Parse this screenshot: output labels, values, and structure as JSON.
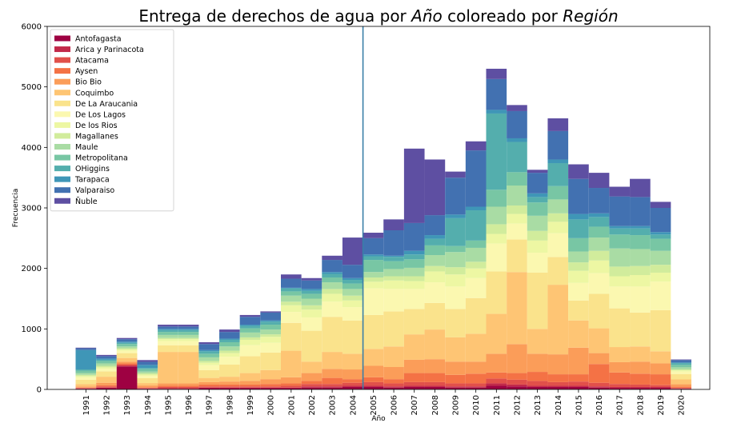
{
  "chart_data": {
    "type": "bar",
    "stacked": true,
    "title_parts": [
      {
        "text": "Entrega de derechos de agua por ",
        "italic": false
      },
      {
        "text": "Año",
        "italic": true
      },
      {
        "text": " coloreado por ",
        "italic": false
      },
      {
        "text": "Región",
        "italic": true
      }
    ],
    "xlabel": "Año",
    "ylabel": "Frecuencia",
    "ylim": [
      0,
      6000
    ],
    "yticks": [
      "0",
      "1000",
      "2000",
      "3000",
      "4000",
      "5000",
      "6000"
    ],
    "grid": false,
    "legend_position": "top-left",
    "vertical_line_at": "2005",
    "vertical_line_color": "#3a7fa8",
    "categories": [
      "1991",
      "1992",
      "1993",
      "1994",
      "1995",
      "1996",
      "1997",
      "1998",
      "1999",
      "2000",
      "2001",
      "2002",
      "2003",
      "2004",
      "2005",
      "2006",
      "2007",
      "2008",
      "2009",
      "2010",
      "2011",
      "2012",
      "2013",
      "2014",
      "2015",
      "2016",
      "2017",
      "2018",
      "2019",
      "2020"
    ],
    "series": [
      {
        "name": "Antofagasta",
        "color": "#9e0142",
        "values": [
          10,
          20,
          380,
          10,
          10,
          10,
          20,
          20,
          20,
          20,
          20,
          30,
          30,
          40,
          40,
          30,
          40,
          40,
          30,
          30,
          60,
          50,
          40,
          40,
          40,
          30,
          20,
          20,
          20,
          10
        ]
      },
      {
        "name": "Arica y Parinacota",
        "color": "#c2294a",
        "values": [
          5,
          10,
          10,
          5,
          10,
          10,
          10,
          10,
          10,
          10,
          10,
          20,
          20,
          20,
          20,
          20,
          20,
          20,
          20,
          20,
          40,
          30,
          20,
          20,
          20,
          20,
          20,
          20,
          20,
          5
        ]
      },
      {
        "name": "Atacama",
        "color": "#e1504a",
        "values": [
          10,
          20,
          20,
          10,
          20,
          20,
          20,
          20,
          20,
          20,
          30,
          40,
          40,
          50,
          60,
          50,
          60,
          60,
          50,
          50,
          80,
          80,
          80,
          60,
          70,
          60,
          50,
          40,
          30,
          10
        ]
      },
      {
        "name": "Aysen",
        "color": "#f47245",
        "values": [
          5,
          20,
          20,
          10,
          20,
          20,
          30,
          30,
          30,
          40,
          40,
          50,
          100,
          60,
          80,
          70,
          150,
          150,
          140,
          160,
          100,
          110,
          150,
          130,
          120,
          310,
          190,
          180,
          180,
          20
        ]
      },
      {
        "name": "Bio Bio",
        "color": "#fb9d59",
        "values": [
          20,
          40,
          30,
          30,
          40,
          40,
          40,
          50,
          60,
          80,
          100,
          130,
          150,
          160,
          190,
          200,
          220,
          230,
          220,
          200,
          310,
          480,
          300,
          330,
          440,
          180,
          170,
          200,
          180,
          40
        ]
      },
      {
        "name": "Coquimbo",
        "color": "#fec574",
        "values": [
          40,
          100,
          60,
          40,
          520,
          520,
          70,
          80,
          130,
          150,
          440,
          190,
          280,
          260,
          280,
          340,
          420,
          490,
          400,
          460,
          660,
          1190,
          410,
          1150,
          450,
          410,
          250,
          250,
          200,
          80
        ]
      },
      {
        "name": "De La Araucania",
        "color": "#fae38c",
        "values": [
          70,
          90,
          80,
          80,
          110,
          110,
          130,
          200,
          280,
          290,
          460,
          510,
          580,
          550,
          560,
          580,
          420,
          440,
          470,
          590,
          700,
          540,
          930,
          460,
          330,
          570,
          640,
          560,
          680,
          90
        ]
      },
      {
        "name": "De Los Lagos",
        "color": "#fbf8b0",
        "values": [
          40,
          40,
          40,
          40,
          70,
          70,
          80,
          130,
          180,
          160,
          180,
          220,
          250,
          220,
          440,
          370,
          330,
          340,
          370,
          330,
          460,
          260,
          330,
          390,
          290,
          340,
          360,
          430,
          470,
          40
        ]
      },
      {
        "name": "De los Rios",
        "color": "#edf7a3",
        "values": [
          20,
          25,
          20,
          20,
          30,
          30,
          40,
          60,
          90,
          100,
          110,
          130,
          130,
          110,
          110,
          140,
          130,
          180,
          200,
          160,
          160,
          160,
          200,
          190,
          200,
          210,
          170,
          190,
          150,
          20
        ]
      },
      {
        "name": "Magallanes",
        "color": "#d1ec9c",
        "values": [
          20,
          25,
          20,
          20,
          20,
          20,
          30,
          40,
          40,
          40,
          60,
          70,
          80,
          80,
          70,
          70,
          80,
          90,
          120,
          110,
          160,
          140,
          160,
          140,
          140,
          160,
          160,
          150,
          130,
          15
        ]
      },
      {
        "name": "Maule",
        "color": "#a9dca4",
        "values": [
          30,
          40,
          30,
          30,
          50,
          50,
          60,
          70,
          80,
          80,
          100,
          110,
          110,
          110,
          90,
          120,
          140,
          180,
          250,
          230,
          290,
          330,
          250,
          230,
          180,
          220,
          300,
          280,
          230,
          35
        ]
      },
      {
        "name": "Metropolitana",
        "color": "#78c6a4",
        "values": [
          40,
          40,
          40,
          40,
          50,
          50,
          60,
          70,
          70,
          80,
          70,
          80,
          80,
          90,
          200,
          130,
          140,
          160,
          100,
          120,
          280,
          220,
          220,
          220,
          220,
          180,
          230,
          230,
          200,
          40
        ]
      },
      {
        "name": "OHiggins",
        "color": "#54aead",
        "values": [
          20,
          20,
          20,
          20,
          30,
          30,
          40,
          40,
          40,
          50,
          50,
          50,
          60,
          60,
          60,
          70,
          80,
          110,
          460,
          500,
          1260,
          500,
          90,
          380,
          310,
          160,
          100,
          110,
          70,
          30
        ]
      },
      {
        "name": "Tarapaca",
        "color": "#3f96b7",
        "values": [
          320,
          20,
          20,
          50,
          20,
          20,
          20,
          20,
          20,
          20,
          10,
          30,
          30,
          30,
          30,
          20,
          60,
          60,
          60,
          60,
          60,
          60,
          60,
          60,
          90,
          60,
          40,
          40,
          40,
          10
        ]
      },
      {
        "name": "Valparaiso",
        "color": "#4271b1",
        "values": [
          30,
          40,
          40,
          50,
          40,
          40,
          100,
          110,
          130,
          130,
          150,
          140,
          200,
          220,
          270,
          420,
          460,
          330,
          610,
          930,
          510,
          450,
          340,
          470,
          580,
          420,
          490,
          480,
          400,
          40
        ]
      },
      {
        "name": "Ñuble",
        "color": "#5e4fa2",
        "values": [
          10,
          20,
          20,
          30,
          30,
          30,
          30,
          40,
          30,
          20,
          70,
          40,
          70,
          450,
          90,
          180,
          1230,
          920,
          100,
          150,
          170,
          100,
          50,
          210,
          240,
          250,
          160,
          300,
          100,
          10
        ]
      }
    ]
  }
}
